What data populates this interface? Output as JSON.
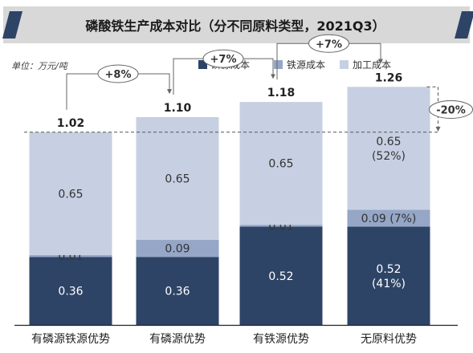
{
  "chart_data": {
    "type": "bar",
    "stacked": true,
    "title": "磷酸铁生产成本对比（分不同原料类型，2021Q3）",
    "unit_label": "单位：万元/吨",
    "categories": [
      "有磷源铁源优势",
      "有磷源优势",
      "有铁源优势",
      "无原料优势"
    ],
    "series": [
      {
        "name": "磷源成本",
        "color": "#2e4466",
        "values": [
          0.36,
          0.36,
          0.52,
          0.52
        ],
        "labels": [
          [
            "0.36"
          ],
          [
            "0.36"
          ],
          [
            "0.52"
          ],
          [
            "0.52",
            "(41%)"
          ]
        ]
      },
      {
        "name": "铁源成本",
        "color": "#95a6c6",
        "values": [
          0.01,
          0.09,
          0.01,
          0.09
        ],
        "labels": [
          [
            "0.01"
          ],
          [
            "0.09"
          ],
          [
            "0.01"
          ],
          [
            "0.09 (7%)"
          ]
        ]
      },
      {
        "name": "加工成本",
        "color": "#c7d0e2",
        "values": [
          0.65,
          0.65,
          0.65,
          0.65
        ],
        "labels": [
          [
            "0.65"
          ],
          [
            "0.65"
          ],
          [
            "0.65"
          ],
          [
            "0.65",
            "(52%)"
          ]
        ]
      }
    ],
    "totals": [
      "1.02",
      "1.10",
      "1.18",
      "1.26"
    ],
    "ylim": [
      0,
      1.38
    ],
    "legend_position": "top-right",
    "gridlines": false,
    "annotations": {
      "increments": [
        "+8%",
        "+7%",
        "+7%"
      ],
      "difference": "-20%"
    }
  }
}
